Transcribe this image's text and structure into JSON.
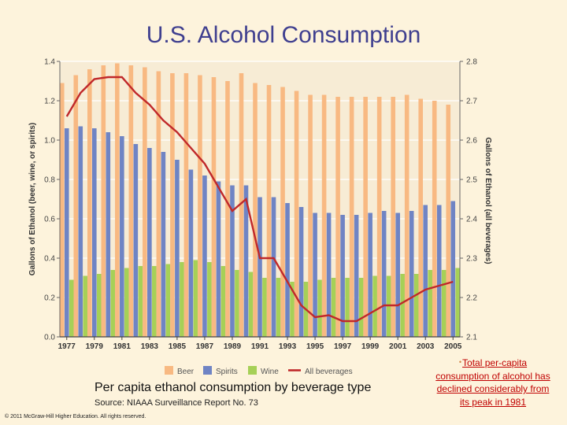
{
  "slide": {
    "title": "U.S. Alcohol Consumption",
    "caption": "Per capita ethanol consumption by beverage type",
    "source": "Source: NIAAA Surveillance Report No. 73",
    "copyright": "© 2011 McGraw-Hill Higher Education. All rights reserved.",
    "note_bullet": "•",
    "note": "Total per-capita consumption of alcohol has declined considerably from its peak in 1981"
  },
  "colors": {
    "beer": "#f8b982",
    "spirits": "#6f84c4",
    "wine": "#a6d057",
    "all": "#c0282a",
    "plot_bg": "#f7ecd5",
    "grid": "#ffffff"
  },
  "chart_data": {
    "type": "bar",
    "title": "",
    "ylabel": "Gallons of Ethanol (beer, wine, or spirits)",
    "y2label": "Gallons of Ethanol (all beverages)",
    "ylim": [
      0,
      1.4
    ],
    "y2lim": [
      2.1,
      2.8
    ],
    "yticks": [
      "0.0",
      "0.2",
      "0.4",
      "0.6",
      "0.8",
      "1.0",
      "1.2",
      "1.4"
    ],
    "y2ticks": [
      "2.1",
      "2.2",
      "2.3",
      "2.4",
      "2.5",
      "2.6",
      "2.7",
      "2.8"
    ],
    "xticks": [
      "1977",
      "1979",
      "1981",
      "1983",
      "1985",
      "1987",
      "1989",
      "1991",
      "1993",
      "1995",
      "1997",
      "1999",
      "2001",
      "2003",
      "2005"
    ],
    "categories": [
      "1977",
      "1978",
      "1979",
      "1980",
      "1981",
      "1982",
      "1983",
      "1984",
      "1985",
      "1986",
      "1987",
      "1988",
      "1989",
      "1990",
      "1991",
      "1992",
      "1993",
      "1994",
      "1995",
      "1996",
      "1997",
      "1998",
      "1999",
      "2000",
      "2001",
      "2002",
      "2003",
      "2004",
      "2005"
    ],
    "series": [
      {
        "name": "Beer",
        "axis": "left",
        "values": [
          1.29,
          1.33,
          1.36,
          1.38,
          1.39,
          1.38,
          1.37,
          1.35,
          1.34,
          1.34,
          1.33,
          1.32,
          1.3,
          1.34,
          1.29,
          1.28,
          1.27,
          1.25,
          1.23,
          1.23,
          1.22,
          1.22,
          1.22,
          1.22,
          1.22,
          1.23,
          1.21,
          1.2,
          1.18
        ]
      },
      {
        "name": "Spirits",
        "axis": "left",
        "values": [
          1.06,
          1.07,
          1.06,
          1.04,
          1.02,
          0.98,
          0.96,
          0.94,
          0.9,
          0.85,
          0.82,
          0.79,
          0.77,
          0.77,
          0.71,
          0.71,
          0.68,
          0.66,
          0.63,
          0.63,
          0.62,
          0.62,
          0.63,
          0.64,
          0.63,
          0.64,
          0.67,
          0.67,
          0.69
        ]
      },
      {
        "name": "Wine",
        "axis": "left",
        "values": [
          0.29,
          0.31,
          0.32,
          0.34,
          0.35,
          0.36,
          0.36,
          0.37,
          0.38,
          0.39,
          0.38,
          0.36,
          0.34,
          0.33,
          0.3,
          0.3,
          0.28,
          0.28,
          0.29,
          0.3,
          0.3,
          0.3,
          0.31,
          0.31,
          0.32,
          0.32,
          0.34,
          0.34,
          0.35
        ]
      },
      {
        "name": "All beverages",
        "axis": "right",
        "type": "line",
        "values": [
          2.66,
          2.72,
          2.755,
          2.76,
          2.76,
          2.72,
          2.69,
          2.65,
          2.62,
          2.58,
          2.54,
          2.48,
          2.42,
          2.45,
          2.3,
          2.3,
          2.24,
          2.18,
          2.15,
          2.155,
          2.14,
          2.14,
          2.16,
          2.18,
          2.18,
          2.2,
          2.22,
          2.23,
          2.24
        ]
      }
    ],
    "legend_position": "bottom",
    "grid": true
  }
}
